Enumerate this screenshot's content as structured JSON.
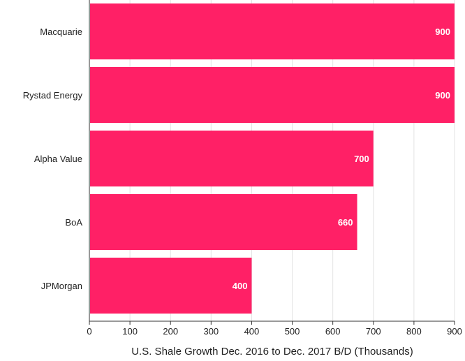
{
  "chart_data": {
    "type": "bar",
    "orientation": "horizontal",
    "categories": [
      "Macquarie",
      "Rystad Energy",
      "Alpha Value",
      "BoA",
      "JPMorgan"
    ],
    "values": [
      900,
      900,
      700,
      660,
      400
    ],
    "data_labels": [
      "900",
      "900",
      "700",
      "660",
      "400"
    ],
    "xlabel": "U.S. Shale Growth Dec. 2016 to Dec. 2017 B/D (Thousands)",
    "ylabel": "",
    "xlim": [
      0,
      900
    ],
    "xticks": [
      "0",
      "100",
      "200",
      "300",
      "400",
      "500",
      "600",
      "700",
      "800",
      "900"
    ],
    "grid": "vertical",
    "legend": "none",
    "bar_color": "#ff2066"
  }
}
